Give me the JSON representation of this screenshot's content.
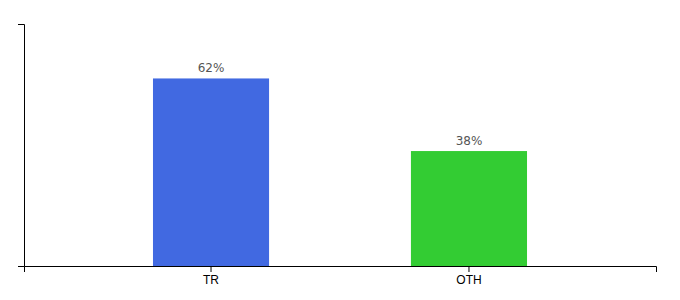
{
  "chart_data": {
    "type": "bar",
    "categories": [
      "TR",
      "OTH"
    ],
    "values": [
      62,
      38
    ],
    "value_labels": [
      "62%",
      "38%"
    ],
    "colors": [
      "#4169e1",
      "#33cc33"
    ],
    "ylim": [
      0,
      80
    ],
    "data_labels": true,
    "tick_labels": "x"
  }
}
